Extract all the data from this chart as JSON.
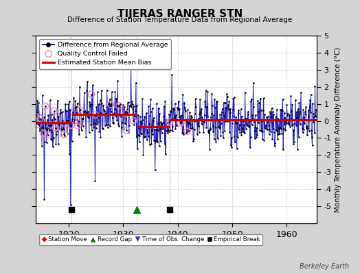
{
  "title": "TIJERAS RANGER STN",
  "subtitle": "Difference of Station Temperature Data from Regional Average",
  "ylabel": "Monthly Temperature Anomaly Difference (°C)",
  "xlabel_years": [
    1920,
    1930,
    1940,
    1950,
    1960
  ],
  "xlim": [
    1914.0,
    1965.5
  ],
  "ylim": [
    -6,
    5
  ],
  "yticks": [
    -5,
    -4,
    -3,
    -2,
    -1,
    0,
    1,
    2,
    3,
    4,
    5
  ],
  "fig_bg_color": "#d4d4d4",
  "plot_bg_color": "#ffffff",
  "grid_color": "#cccccc",
  "line_color": "#2222bb",
  "marker_color": "#000000",
  "bias_color": "#cc0000",
  "qc_color": "#ee88bb",
  "watermark": "Berkeley Earth",
  "segment_biases": [
    {
      "x_start": 1914.0,
      "x_end": 1920.5,
      "bias": -0.1
    },
    {
      "x_start": 1920.5,
      "x_end": 1932.5,
      "bias": 0.38
    },
    {
      "x_start": 1932.5,
      "x_end": 1938.5,
      "bias": -0.32
    },
    {
      "x_start": 1938.5,
      "x_end": 1965.5,
      "bias": 0.05
    }
  ],
  "events": [
    {
      "type": "empirical_break",
      "year": 1920.5
    },
    {
      "type": "record_gap",
      "year": 1932.5
    },
    {
      "type": "empirical_break",
      "year": 1938.5
    }
  ],
  "seed": 42
}
